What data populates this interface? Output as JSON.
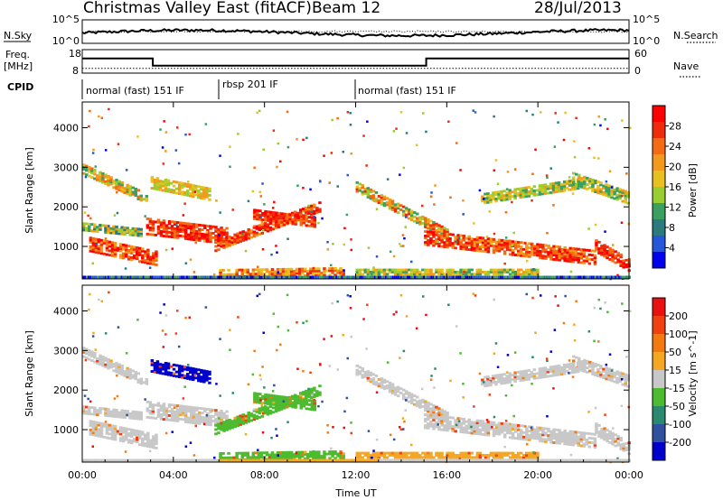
{
  "chart_data": {
    "type": "heatmap",
    "title": "Christmas Valley East (fitACF)",
    "beam_label": "Beam 12",
    "date": "28/Jul/2013",
    "x_axis": {
      "label": "Time UT",
      "range_hours": [
        0,
        24
      ],
      "tick_labels": [
        "00:00",
        "04:00",
        "08:00",
        "12:00",
        "16:00",
        "20:00",
        "00:00"
      ]
    },
    "nsky_panel": {
      "left_label": "N.Sky",
      "right_label": "N.Search",
      "tick_labels": [
        "10^5",
        "10^0"
      ],
      "right_tick_labels": [
        "10^5",
        "10^0"
      ]
    },
    "freq_panel": {
      "left_label_1": "Freq.",
      "left_label_2": "[MHz]",
      "left_ticks": [
        "18",
        "8"
      ],
      "right_label": "Nave",
      "right_ticks": [
        "60",
        "0"
      ],
      "freq_steps": [
        {
          "start": 0,
          "end": 3.1,
          "value": 14.5
        },
        {
          "start": 3.1,
          "end": 15.1,
          "value": 10.8
        },
        {
          "start": 15.1,
          "end": 24,
          "value": 14.5
        }
      ],
      "nave_level": 12
    },
    "cpid": {
      "label": "CPID",
      "segments": [
        {
          "start": 0,
          "end": 6.0,
          "text": "normal (fast) 151 IF"
        },
        {
          "start": 6.0,
          "end": 12.0,
          "text": "rbsp 201 IF"
        },
        {
          "start": 12.0,
          "end": 24,
          "text": "normal (fast) 151 IF"
        }
      ]
    },
    "power_panel": {
      "ylabel": "Slant Range [km]",
      "yticks": [
        "1000",
        "2000",
        "3000",
        "4000"
      ],
      "ylim": [
        180,
        4650
      ],
      "colorbar_label": "Power [dB]",
      "colorbar_ticks": [
        "28",
        "24",
        "20",
        "16",
        "12",
        "8",
        "4"
      ],
      "colors": [
        "#0000ee",
        "#2656d9",
        "#2a7a7e",
        "#3aa060",
        "#9acd32",
        "#e8c020",
        "#f29a1d",
        "#f36b12",
        "#ee2b0a",
        "#ff0000"
      ]
    },
    "velocity_panel": {
      "ylabel": "Slant Range [km]",
      "yticks": [
        "1000",
        "2000",
        "3000",
        "4000"
      ],
      "ylim": [
        180,
        4650
      ],
      "colorbar_label": "Velocity [m s^-1]",
      "colorbar_ticks": [
        "200",
        "100",
        "50",
        "15",
        "-15",
        "-50",
        "-100",
        "-200"
      ],
      "colors": [
        "#0000cc",
        "#3050a0",
        "#2a8a70",
        "#4dbb30",
        "#c8c8c8",
        "#f5a623",
        "#f37a10",
        "#f04010",
        "#e81010"
      ]
    }
  }
}
